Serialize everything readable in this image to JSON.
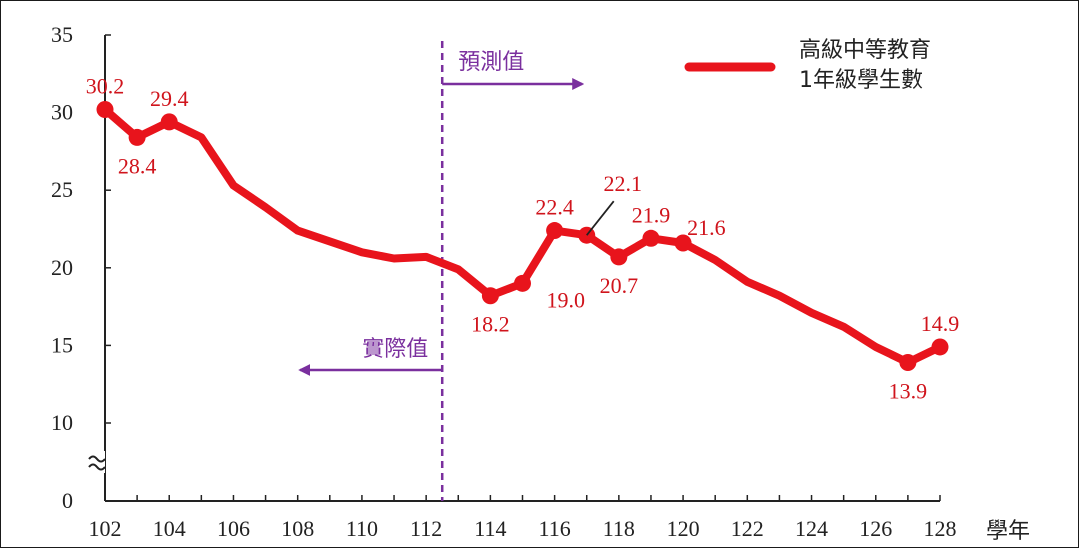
{
  "chart_data": {
    "type": "line",
    "xlabel": "學年",
    "ylabel": "",
    "xlim": [
      102,
      128
    ],
    "ylim": [
      0,
      35
    ],
    "axis_break": true,
    "y_ticks": [
      "0",
      "10",
      "15",
      "20",
      "25",
      "30",
      "35"
    ],
    "x_ticks": [
      "102",
      "104",
      "106",
      "108",
      "110",
      "112",
      "114",
      "116",
      "118",
      "120",
      "122",
      "124",
      "126",
      "128"
    ],
    "series": [
      {
        "name": "高級中等教育\n1年級學生數",
        "color": "#e8141c",
        "points": [
          {
            "x": 102,
            "y": 30.2
          },
          {
            "x": 103,
            "y": 28.4
          },
          {
            "x": 104,
            "y": 29.4
          },
          {
            "x": 105,
            "y": 28.4
          },
          {
            "x": 106,
            "y": 25.3
          },
          {
            "x": 107,
            "y": 23.9
          },
          {
            "x": 108,
            "y": 22.4
          },
          {
            "x": 109,
            "y": 21.7
          },
          {
            "x": 110,
            "y": 21.0
          },
          {
            "x": 111,
            "y": 20.6
          },
          {
            "x": 112,
            "y": 20.7
          },
          {
            "x": 113,
            "y": 19.9
          },
          {
            "x": 114,
            "y": 18.2
          },
          {
            "x": 115,
            "y": 19.0
          },
          {
            "x": 116,
            "y": 22.4
          },
          {
            "x": 117,
            "y": 22.1
          },
          {
            "x": 118,
            "y": 20.7
          },
          {
            "x": 119,
            "y": 21.9
          },
          {
            "x": 120,
            "y": 21.6
          },
          {
            "x": 121,
            "y": 20.5
          },
          {
            "x": 122,
            "y": 19.1
          },
          {
            "x": 123,
            "y": 18.2
          },
          {
            "x": 124,
            "y": 17.1
          },
          {
            "x": 125,
            "y": 16.2
          },
          {
            "x": 126,
            "y": 14.9
          },
          {
            "x": 127,
            "y": 13.9
          },
          {
            "x": 128,
            "y": 14.9
          }
        ],
        "markers_at": [
          102,
          103,
          104,
          114,
          115,
          116,
          117,
          118,
          119,
          120,
          127,
          128
        ]
      }
    ],
    "data_labels": [
      {
        "x": 102,
        "text": "30.2",
        "pos": "above"
      },
      {
        "x": 103,
        "text": "28.4",
        "pos": "below"
      },
      {
        "x": 104,
        "text": "29.4",
        "pos": "above"
      },
      {
        "x": 114,
        "text": "18.2",
        "pos": "below"
      },
      {
        "x": 115,
        "text": "19.0",
        "pos": "below-right"
      },
      {
        "x": 116,
        "text": "22.4",
        "pos": "above"
      },
      {
        "x": 117,
        "text": "22.1",
        "pos": "callout"
      },
      {
        "x": 118,
        "text": "20.7",
        "pos": "below"
      },
      {
        "x": 119,
        "text": "21.9",
        "pos": "above"
      },
      {
        "x": 120,
        "text": "21.6",
        "pos": "above-right"
      },
      {
        "x": 127,
        "text": "13.9",
        "pos": "below"
      },
      {
        "x": 128,
        "text": "14.9",
        "pos": "above"
      }
    ],
    "divider": {
      "x": 112.5,
      "color": "#7a2f9e",
      "forecast_label": "預測值",
      "actual_label": "實際值"
    },
    "legend": {
      "placement": "top-right"
    }
  }
}
